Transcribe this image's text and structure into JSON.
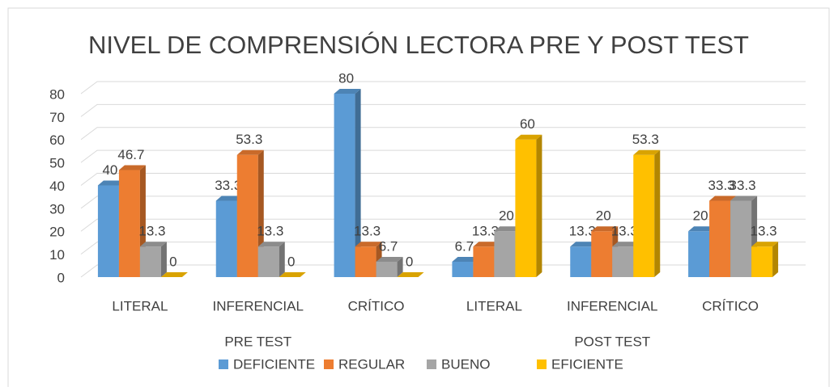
{
  "chart_data": {
    "type": "bar3d",
    "title": "NIVEL DE COMPRENSIÓN LECTORA PRE Y POST TEST",
    "categories": [
      "LITERAL",
      "INFERENCIAL",
      "CRÍTICO",
      "LITERAL",
      "INFERENCIAL",
      "CRÍTICO"
    ],
    "groups": [
      {
        "label": "PRE TEST",
        "span": [
          0,
          2
        ]
      },
      {
        "label": "POST TEST",
        "span": [
          3,
          5
        ]
      }
    ],
    "series": [
      {
        "name": "DEFICIENTE",
        "color": "#5b9bd5",
        "values": [
          40,
          33.3,
          80,
          6.7,
          13.3,
          20
        ]
      },
      {
        "name": "REGULAR",
        "color": "#ed7d31",
        "values": [
          46.7,
          53.3,
          13.3,
          13.3,
          20,
          33.3
        ]
      },
      {
        "name": "BUENO",
        "color": "#a5a5a5",
        "values": [
          13.3,
          13.3,
          6.7,
          20,
          13.3,
          33.3
        ]
      },
      {
        "name": "EFICIENTE",
        "color": "#ffc000",
        "values": [
          0,
          0,
          0,
          60,
          53.3,
          13.3
        ]
      }
    ],
    "ylim": [
      0,
      80
    ],
    "yticks": [
      0,
      10,
      20,
      30,
      40,
      50,
      60,
      70,
      80
    ],
    "grid": true,
    "legend": "bottom"
  }
}
